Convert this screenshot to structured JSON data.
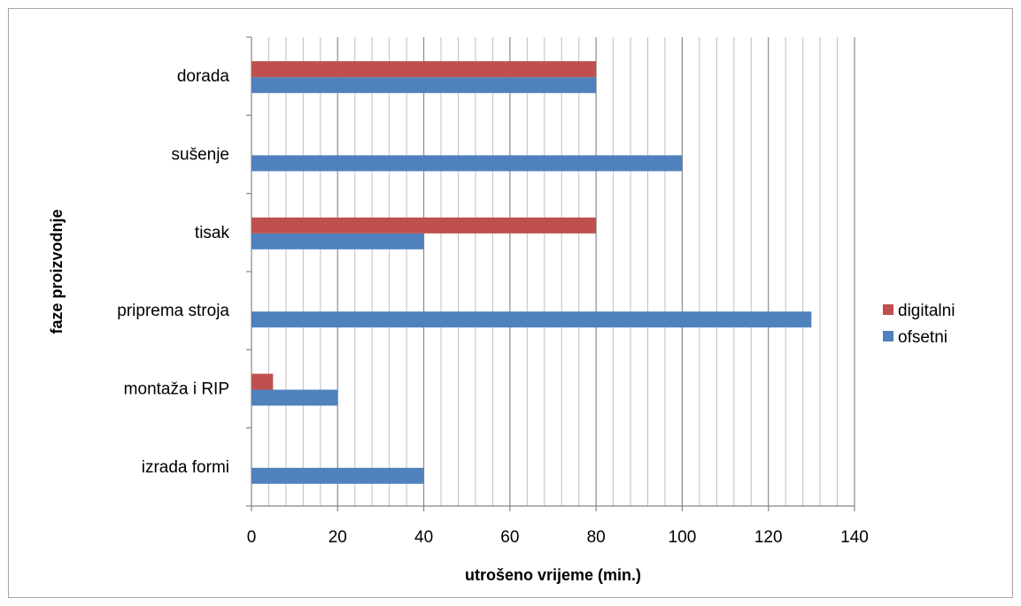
{
  "chart_data": {
    "type": "bar",
    "orientation": "horizontal",
    "categories": [
      "izrada formi",
      "montaža i RIP",
      "priprema stroja",
      "tisak",
      "sušenje",
      "dorada"
    ],
    "series": [
      {
        "name": "ofsetni",
        "color": "#4f81bd",
        "values": [
          40,
          20,
          130,
          40,
          100,
          80
        ]
      },
      {
        "name": "digitalni",
        "color": "#c0504d",
        "values": [
          0,
          5,
          0,
          80,
          0,
          80
        ]
      }
    ],
    "xlabel": "utrošeno vrijeme (min.)",
    "ylabel": "faze proizvodnje",
    "xlim": [
      0,
      140
    ],
    "major_step": 20,
    "minor_step": 4,
    "legend_position": "right",
    "grid": true
  }
}
